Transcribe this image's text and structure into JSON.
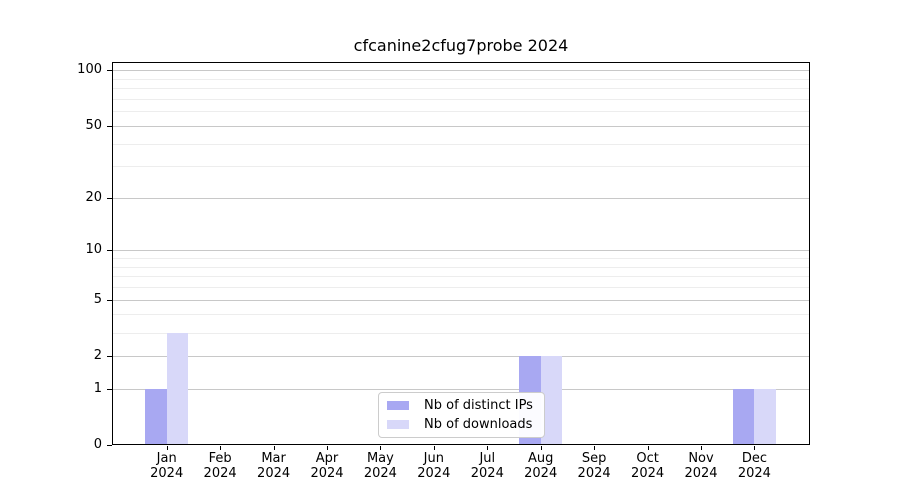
{
  "title": "cfcanine2cfug7probe 2024",
  "colors": {
    "distinct_ips_bar": "#a8a8f2",
    "downloads_bar": "#d8d8f9",
    "grid_major": "#c8c8c8",
    "grid_minor": "#ededed",
    "axis": "#000000"
  },
  "legend": {
    "items": [
      {
        "label": "Nb of distinct IPs",
        "color": "#a8a8f2"
      },
      {
        "label": "Nb of downloads",
        "color": "#d8d8f9"
      }
    ]
  },
  "chart_data": {
    "type": "bar",
    "title": "cfcanine2cfug7probe 2024",
    "categories": [
      "Jan",
      "Feb",
      "Mar",
      "Apr",
      "May",
      "Jun",
      "Jul",
      "Aug",
      "Sep",
      "Oct",
      "Nov",
      "Dec"
    ],
    "category_year": "2024",
    "series": [
      {
        "name": "Nb of distinct IPs",
        "color": "#a8a8f2",
        "values": [
          1,
          0,
          0,
          0,
          0,
          0,
          0,
          2,
          0,
          0,
          0,
          1
        ]
      },
      {
        "name": "Nb of downloads",
        "color": "#d8d8f9",
        "values": [
          3,
          0,
          0,
          0,
          0,
          0,
          0,
          2,
          0,
          0,
          0,
          1
        ]
      }
    ],
    "yscale": "log1p",
    "yticks": [
      0,
      1,
      2,
      5,
      10,
      20,
      50,
      100
    ],
    "minor_yticks": [
      3,
      4,
      6,
      7,
      8,
      9,
      30,
      40,
      60,
      70,
      80,
      90
    ],
    "ylim": [
      0,
      111
    ],
    "xlabel": "",
    "ylabel": "",
    "grid": "on",
    "legend_position": "lower center"
  }
}
